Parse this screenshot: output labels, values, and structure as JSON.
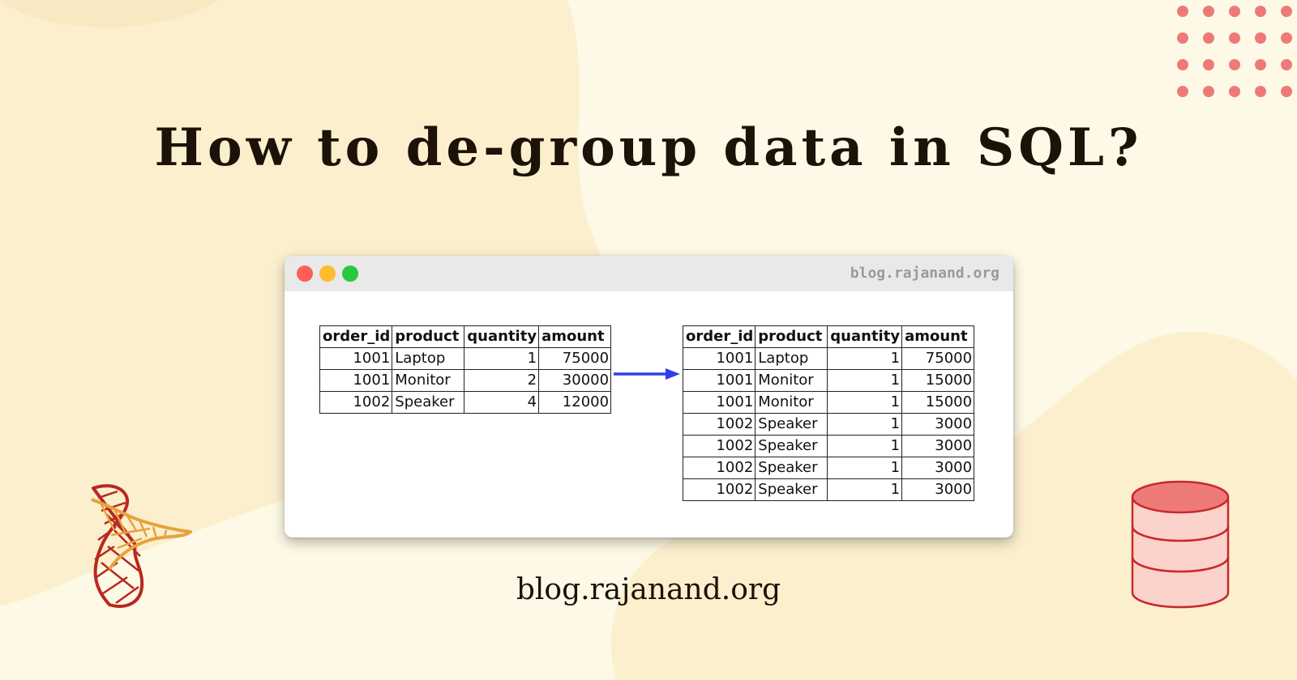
{
  "title": "How to de-group data in SQL?",
  "window": {
    "url": "blog.rajanand.org",
    "traffic_lights": [
      "close",
      "minimize",
      "maximize"
    ]
  },
  "input_table": {
    "columns": [
      "order_id",
      "product",
      "quantity",
      "amount"
    ],
    "rows": [
      [
        "1001",
        "Laptop",
        "1",
        "75000"
      ],
      [
        "1001",
        "Monitor",
        "2",
        "30000"
      ],
      [
        "1002",
        "Speaker",
        "4",
        "12000"
      ]
    ]
  },
  "output_table": {
    "columns": [
      "order_id",
      "product",
      "quantity",
      "amount"
    ],
    "rows": [
      [
        "1001",
        "Laptop",
        "1",
        "75000"
      ],
      [
        "1001",
        "Monitor",
        "1",
        "15000"
      ],
      [
        "1001",
        "Monitor",
        "1",
        "15000"
      ],
      [
        "1002",
        "Speaker",
        "1",
        "3000"
      ],
      [
        "1002",
        "Speaker",
        "1",
        "3000"
      ],
      [
        "1002",
        "Speaker",
        "1",
        "3000"
      ],
      [
        "1002",
        "Speaker",
        "1",
        "3000"
      ]
    ]
  },
  "footer": "blog.rajanand.org",
  "colors": {
    "background": "#fdf9e6",
    "blob": "#fbefce",
    "dots": "#ee7a78",
    "arrow": "#2f3fe6",
    "database": "#ee7a78",
    "logo_red": "#b8281e",
    "logo_orange": "#e8a23b"
  },
  "icons": {
    "arrow": "right-arrow-icon",
    "logo": "sql-server-logo-icon",
    "database": "database-cylinder-icon",
    "dots": "dot-grid-decoration"
  }
}
